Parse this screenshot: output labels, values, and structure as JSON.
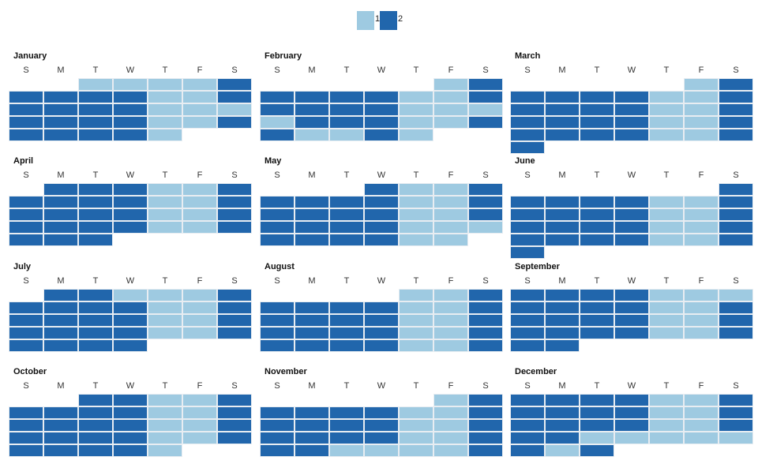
{
  "chart_data": {
    "type": "heatmap",
    "subtype": "calendar",
    "legend": {
      "placement": "top-center",
      "entries": [
        {
          "label": "1",
          "color": "#9ecae1"
        },
        {
          "label": "2",
          "color": "#2166ac"
        }
      ]
    },
    "weekday_labels": [
      "S",
      "M",
      "T",
      "W",
      "T",
      "F",
      "S"
    ],
    "value_colors": {
      "1": "#9ecae1",
      "2": "#2166ac"
    },
    "months": [
      {
        "name": "January",
        "first_weekday": 2,
        "values": [
          1,
          1,
          1,
          1,
          2,
          2,
          2,
          2,
          2,
          1,
          1,
          2,
          2,
          2,
          2,
          2,
          1,
          1,
          1,
          2,
          2,
          2,
          2,
          1,
          1,
          2,
          2,
          2,
          2,
          2,
          1
        ]
      },
      {
        "name": "February",
        "first_weekday": 5,
        "values": [
          1,
          2,
          2,
          2,
          2,
          2,
          1,
          1,
          2,
          2,
          2,
          2,
          2,
          1,
          1,
          1,
          1,
          2,
          2,
          2,
          1,
          1,
          2,
          2,
          1,
          1,
          2,
          1
        ]
      },
      {
        "name": "March",
        "first_weekday": 5,
        "values": [
          1,
          2,
          2,
          2,
          2,
          2,
          1,
          1,
          2,
          2,
          2,
          2,
          2,
          1,
          1,
          2,
          2,
          2,
          2,
          2,
          1,
          1,
          2,
          2,
          2,
          2,
          2,
          1,
          1,
          2,
          2
        ]
      },
      {
        "name": "April",
        "first_weekday": 1,
        "values": [
          2,
          2,
          2,
          1,
          1,
          2,
          2,
          2,
          2,
          2,
          1,
          1,
          2,
          2,
          2,
          2,
          2,
          1,
          1,
          2,
          2,
          2,
          2,
          2,
          1,
          1,
          2,
          2,
          2,
          2
        ]
      },
      {
        "name": "May",
        "first_weekday": 3,
        "values": [
          2,
          1,
          1,
          2,
          2,
          2,
          2,
          2,
          1,
          1,
          2,
          2,
          2,
          2,
          2,
          1,
          1,
          2,
          2,
          2,
          2,
          2,
          1,
          1,
          1,
          2,
          2,
          2,
          2,
          1,
          1
        ]
      },
      {
        "name": "June",
        "first_weekday": 6,
        "values": [
          2,
          2,
          2,
          2,
          2,
          1,
          1,
          2,
          2,
          2,
          2,
          2,
          1,
          1,
          2,
          2,
          2,
          2,
          2,
          1,
          1,
          2,
          2,
          2,
          2,
          2,
          1,
          1,
          2,
          2
        ]
      },
      {
        "name": "July",
        "first_weekday": 1,
        "values": [
          2,
          2,
          1,
          1,
          1,
          2,
          2,
          2,
          2,
          2,
          1,
          1,
          2,
          2,
          2,
          2,
          2,
          1,
          1,
          2,
          2,
          2,
          2,
          2,
          1,
          1,
          2,
          2,
          2,
          2,
          2
        ]
      },
      {
        "name": "August",
        "first_weekday": 4,
        "values": [
          1,
          1,
          2,
          2,
          2,
          2,
          2,
          1,
          1,
          2,
          2,
          2,
          2,
          2,
          1,
          1,
          2,
          2,
          2,
          2,
          2,
          1,
          1,
          2,
          2,
          2,
          2,
          2,
          1,
          1,
          2
        ]
      },
      {
        "name": "September",
        "first_weekday": 0,
        "values": [
          2,
          2,
          2,
          2,
          1,
          1,
          1,
          2,
          2,
          2,
          2,
          1,
          1,
          2,
          2,
          2,
          2,
          2,
          1,
          1,
          2,
          2,
          2,
          2,
          2,
          1,
          1,
          2,
          2,
          2
        ]
      },
      {
        "name": "October",
        "first_weekday": 2,
        "values": [
          2,
          2,
          1,
          1,
          2,
          2,
          2,
          2,
          2,
          1,
          1,
          2,
          2,
          2,
          2,
          2,
          1,
          1,
          2,
          2,
          2,
          2,
          2,
          1,
          1,
          2,
          2,
          2,
          2,
          2,
          1
        ]
      },
      {
        "name": "November",
        "first_weekday": 5,
        "values": [
          1,
          2,
          2,
          2,
          2,
          2,
          1,
          1,
          2,
          2,
          2,
          2,
          2,
          1,
          1,
          2,
          2,
          2,
          2,
          2,
          1,
          1,
          2,
          2,
          2,
          1,
          1,
          1,
          1,
          2
        ]
      },
      {
        "name": "December",
        "first_weekday": 0,
        "values": [
          2,
          2,
          2,
          2,
          1,
          1,
          2,
          2,
          2,
          2,
          2,
          1,
          1,
          2,
          2,
          2,
          2,
          2,
          1,
          1,
          2,
          2,
          2,
          1,
          1,
          1,
          1,
          1,
          2,
          1,
          2
        ]
      }
    ]
  }
}
